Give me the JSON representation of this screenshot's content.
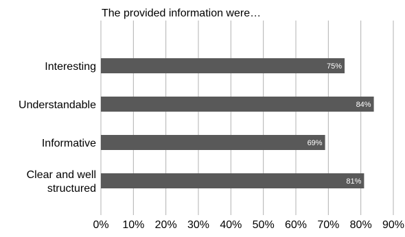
{
  "chart_data": {
    "type": "bar",
    "orientation": "horizontal",
    "title": "The provided information were…",
    "categories": [
      "Interesting",
      "Understandable",
      "Informative",
      "Clear and well structured"
    ],
    "category_lines": [
      [
        "Interesting"
      ],
      [
        "Understandable"
      ],
      [
        "Informative"
      ],
      [
        "Clear and well",
        "structured"
      ]
    ],
    "values": [
      75,
      84,
      69,
      81
    ],
    "data_labels": [
      "75%",
      "84%",
      "69%",
      "81%"
    ],
    "xlim": [
      0,
      90
    ],
    "xticks": [
      0,
      10,
      20,
      30,
      40,
      50,
      60,
      70,
      80,
      90
    ],
    "xtick_labels": [
      "0%",
      "10%",
      "20%",
      "30%",
      "40%",
      "50%",
      "60%",
      "70%",
      "80%",
      "90%"
    ],
    "grid": true,
    "legend": "none",
    "bar_color": "#595959",
    "grid_color": "#b0b0b0",
    "data_label_color": "#ffffff",
    "text_color": "#000000"
  }
}
